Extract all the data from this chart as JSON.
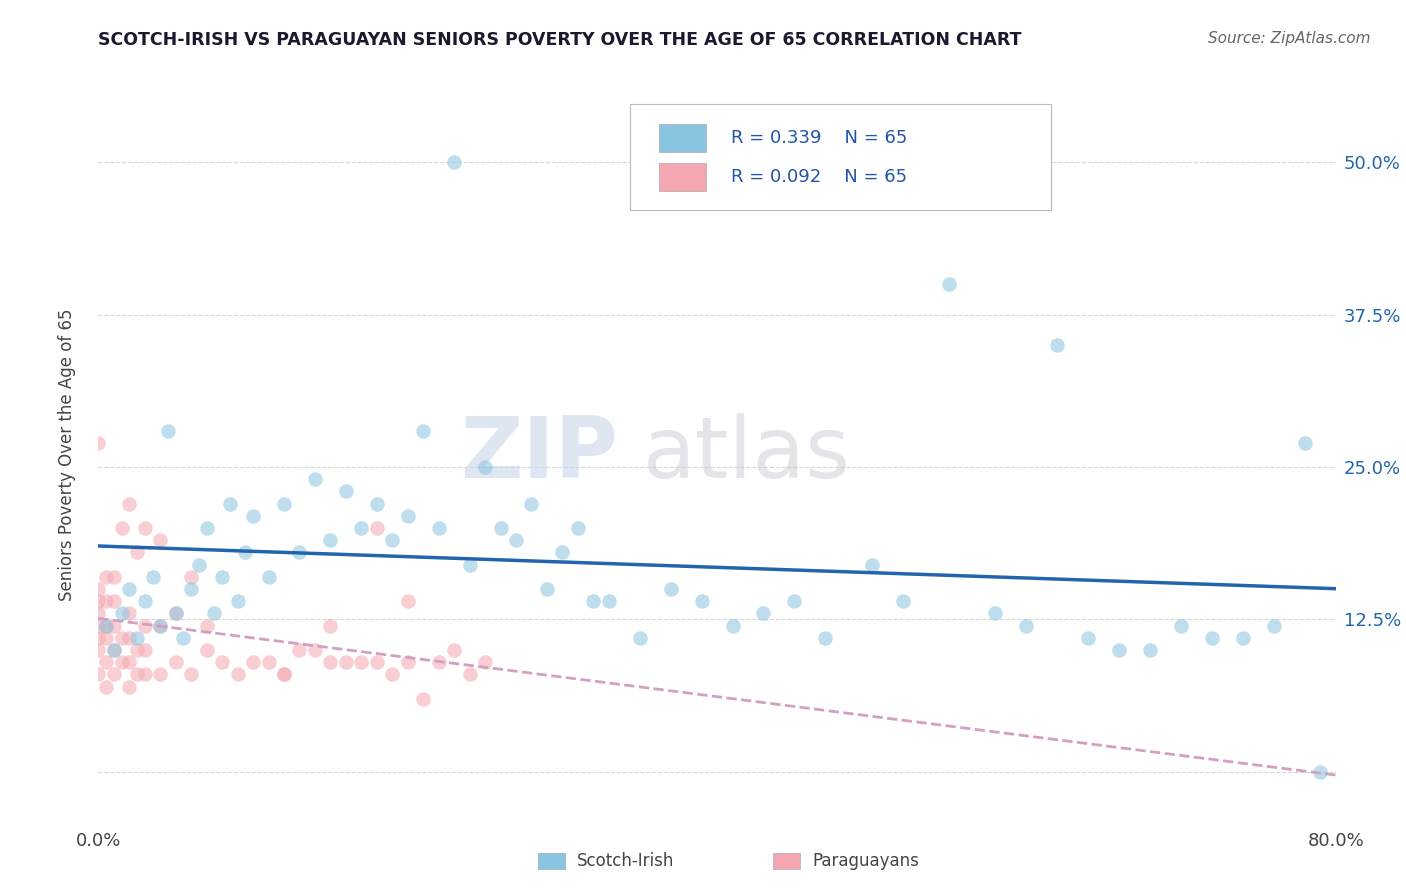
{
  "title": "SCOTCH-IRISH VS PARAGUAYAN SENIORS POVERTY OVER THE AGE OF 65 CORRELATION CHART",
  "source_text": "Source: ZipAtlas.com",
  "ylabel": "Seniors Poverty Over the Age of 65",
  "xlim": [
    0.0,
    0.8
  ],
  "ylim": [
    -0.04,
    0.56
  ],
  "xticklabels": [
    "0.0%",
    "",
    "",
    "",
    "",
    "",
    "",
    "",
    "80.0%"
  ],
  "ytick_labels_right": [
    "",
    "12.5%",
    "25.0%",
    "37.5%",
    "50.0%"
  ],
  "scotch_irish_R": 0.339,
  "scotch_irish_N": 65,
  "paraguayan_R": 0.092,
  "paraguayan_N": 65,
  "scotch_irish_color": "#89c4e1",
  "paraguayan_color": "#f4a7b0",
  "scotch_irish_line_color": "#2166ac",
  "paraguayan_line_color": "#d4a0c0",
  "legend_label_1": "Scotch-Irish",
  "legend_label_2": "Paraguayans",
  "watermark_zip": "ZIP",
  "watermark_atlas": "atlas",
  "bg_color": "#ffffff",
  "grid_color": "#cccccc",
  "scotch_irish_x": [
    0.005,
    0.01,
    0.015,
    0.02,
    0.025,
    0.03,
    0.035,
    0.04,
    0.045,
    0.05,
    0.055,
    0.06,
    0.065,
    0.07,
    0.075,
    0.08,
    0.085,
    0.09,
    0.095,
    0.1,
    0.11,
    0.12,
    0.13,
    0.14,
    0.15,
    0.16,
    0.17,
    0.18,
    0.19,
    0.2,
    0.21,
    0.22,
    0.23,
    0.24,
    0.25,
    0.26,
    0.27,
    0.28,
    0.29,
    0.3,
    0.31,
    0.32,
    0.33,
    0.35,
    0.37,
    0.39,
    0.41,
    0.43,
    0.45,
    0.47,
    0.5,
    0.52,
    0.55,
    0.58,
    0.6,
    0.62,
    0.64,
    0.66,
    0.68,
    0.7,
    0.72,
    0.74,
    0.76,
    0.78,
    0.79
  ],
  "scotch_irish_y": [
    0.12,
    0.1,
    0.13,
    0.15,
    0.11,
    0.14,
    0.16,
    0.12,
    0.28,
    0.13,
    0.11,
    0.15,
    0.17,
    0.2,
    0.13,
    0.16,
    0.22,
    0.14,
    0.18,
    0.21,
    0.16,
    0.22,
    0.18,
    0.24,
    0.19,
    0.23,
    0.2,
    0.22,
    0.19,
    0.21,
    0.28,
    0.2,
    0.5,
    0.17,
    0.25,
    0.2,
    0.19,
    0.22,
    0.15,
    0.18,
    0.2,
    0.14,
    0.14,
    0.11,
    0.15,
    0.14,
    0.12,
    0.13,
    0.14,
    0.11,
    0.17,
    0.14,
    0.4,
    0.13,
    0.12,
    0.35,
    0.11,
    0.1,
    0.1,
    0.12,
    0.11,
    0.11,
    0.12,
    0.27,
    0.0
  ],
  "paraguayan_x": [
    0.0,
    0.0,
    0.0,
    0.0,
    0.0,
    0.0,
    0.0,
    0.0,
    0.005,
    0.005,
    0.005,
    0.005,
    0.005,
    0.005,
    0.01,
    0.01,
    0.01,
    0.01,
    0.01,
    0.015,
    0.015,
    0.015,
    0.02,
    0.02,
    0.02,
    0.02,
    0.02,
    0.025,
    0.025,
    0.025,
    0.03,
    0.03,
    0.03,
    0.03,
    0.04,
    0.04,
    0.04,
    0.05,
    0.05,
    0.06,
    0.06,
    0.07,
    0.07,
    0.08,
    0.09,
    0.1,
    0.11,
    0.12,
    0.13,
    0.14,
    0.15,
    0.16,
    0.17,
    0.18,
    0.19,
    0.2,
    0.21,
    0.22,
    0.23,
    0.24,
    0.25,
    0.2,
    0.18,
    0.15,
    0.12
  ],
  "paraguayan_y": [
    0.08,
    0.1,
    0.11,
    0.12,
    0.13,
    0.14,
    0.15,
    0.27,
    0.07,
    0.09,
    0.11,
    0.12,
    0.14,
    0.16,
    0.08,
    0.1,
    0.12,
    0.14,
    0.16,
    0.09,
    0.11,
    0.2,
    0.07,
    0.09,
    0.11,
    0.13,
    0.22,
    0.08,
    0.1,
    0.18,
    0.08,
    0.1,
    0.12,
    0.2,
    0.08,
    0.12,
    0.19,
    0.09,
    0.13,
    0.08,
    0.16,
    0.1,
    0.12,
    0.09,
    0.08,
    0.09,
    0.09,
    0.08,
    0.1,
    0.1,
    0.09,
    0.09,
    0.09,
    0.09,
    0.08,
    0.09,
    0.06,
    0.09,
    0.1,
    0.08,
    0.09,
    0.14,
    0.2,
    0.12,
    0.08
  ]
}
